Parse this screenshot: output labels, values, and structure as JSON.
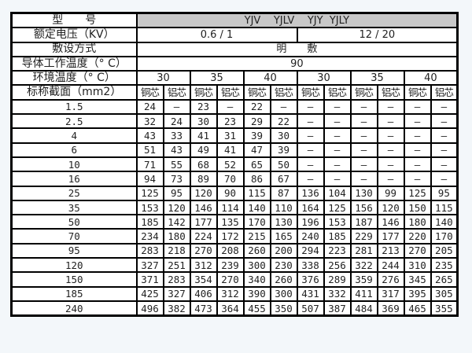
{
  "header": {
    "model_label": "型　　号",
    "model_value": "YJV    YJLV    YJY  YJLY",
    "voltage_label": "额定电压（KV）",
    "voltage_values": [
      "0.6 / 1",
      "12 / 20"
    ],
    "laying_label": "敷设方式",
    "laying_value": "明　　敷",
    "conductor_temp_label": "导体工作温度（° C）",
    "conductor_temp_value": "90",
    "ambient_label": "环境温度（° C）",
    "ambient_values": [
      "30",
      "35",
      "40",
      "30",
      "35",
      "40"
    ],
    "section_label": "标称截面（mm2）",
    "core_types": [
      "铜芯",
      "铝芯",
      "铜芯",
      "铝芯",
      "铜芯",
      "铝芯",
      "铜芯",
      "铝芯",
      "铜芯",
      "铝芯",
      "铜芯",
      "铝芯"
    ]
  },
  "rows": [
    {
      "section": "1.5",
      "values": [
        "24",
        "—",
        "23",
        "—",
        "22",
        "—",
        "—",
        "—",
        "—",
        "—",
        "—",
        "—"
      ]
    },
    {
      "section": "2.5",
      "values": [
        "32",
        "24",
        "30",
        "23",
        "29",
        "22",
        "—",
        "—",
        "—",
        "—",
        "—",
        "—"
      ]
    },
    {
      "section": "4",
      "values": [
        "43",
        "33",
        "41",
        "31",
        "39",
        "30",
        "—",
        "—",
        "—",
        "—",
        "—",
        "—"
      ]
    },
    {
      "section": "6",
      "values": [
        "51",
        "43",
        "49",
        "41",
        "47",
        "39",
        "—",
        "—",
        "—",
        "—",
        "—",
        "—"
      ]
    },
    {
      "section": "10",
      "values": [
        "71",
        "55",
        "68",
        "52",
        "65",
        "50",
        "—",
        "—",
        "—",
        "—",
        "—",
        "—"
      ]
    },
    {
      "section": "16",
      "values": [
        "94",
        "73",
        "89",
        "70",
        "86",
        "67",
        "—",
        "—",
        "—",
        "—",
        "—",
        "—"
      ]
    },
    {
      "section": "25",
      "values": [
        "125",
        "95",
        "120",
        "90",
        "115",
        "87",
        "136",
        "104",
        "130",
        "99",
        "125",
        "95"
      ]
    },
    {
      "section": "35",
      "values": [
        "153",
        "120",
        "146",
        "114",
        "140",
        "110",
        "164",
        "125",
        "156",
        "120",
        "150",
        "115"
      ]
    },
    {
      "section": "50",
      "values": [
        "185",
        "142",
        "177",
        "135",
        "170",
        "130",
        "196",
        "153",
        "187",
        "146",
        "180",
        "140"
      ]
    },
    {
      "section": "70",
      "values": [
        "234",
        "180",
        "224",
        "172",
        "215",
        "165",
        "240",
        "185",
        "229",
        "177",
        "220",
        "170"
      ]
    },
    {
      "section": "95",
      "values": [
        "283",
        "218",
        "270",
        "208",
        "260",
        "200",
        "294",
        "223",
        "281",
        "213",
        "270",
        "205"
      ]
    },
    {
      "section": "120",
      "values": [
        "327",
        "251",
        "312",
        "239",
        "300",
        "230",
        "338",
        "256",
        "322",
        "244",
        "310",
        "235"
      ]
    },
    {
      "section": "150",
      "values": [
        "371",
        "283",
        "354",
        "270",
        "340",
        "260",
        "376",
        "289",
        "359",
        "276",
        "345",
        "265"
      ]
    },
    {
      "section": "185",
      "values": [
        "425",
        "327",
        "406",
        "312",
        "390",
        "300",
        "431",
        "332",
        "411",
        "317",
        "395",
        "305"
      ]
    },
    {
      "section": "240",
      "values": [
        "496",
        "382",
        "473",
        "364",
        "455",
        "350",
        "507",
        "387",
        "484",
        "369",
        "465",
        "355"
      ]
    }
  ]
}
